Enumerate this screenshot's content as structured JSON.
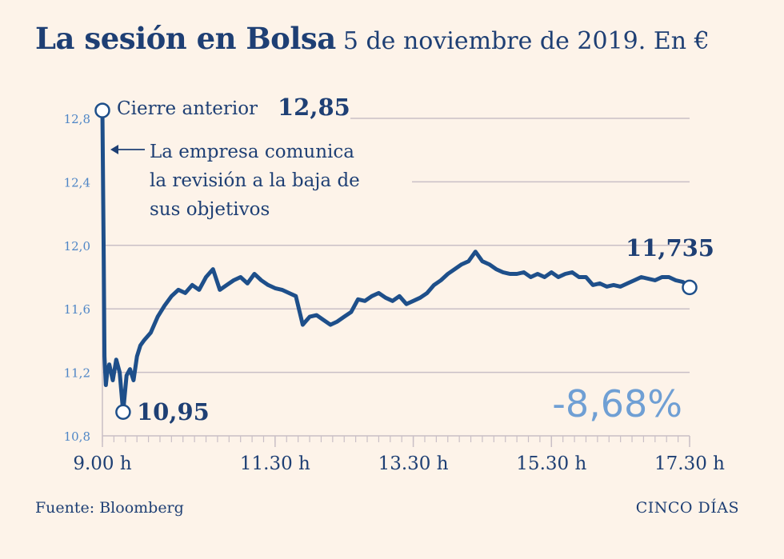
{
  "header": {
    "title": "La sesión en Bolsa",
    "subtitle": "5 de noviembre de 2019. En €"
  },
  "footer": {
    "source": "Fuente: Bloomberg",
    "brand": "CINCO DÍAS"
  },
  "colors": {
    "background": "#fdf3e9",
    "line": "#1e4f8a",
    "text": "#1e3f74",
    "axis_text": "#4f86c6",
    "grid": "#c9bfc6",
    "change": "#6f9fd4"
  },
  "chart_data": {
    "type": "line",
    "title": "La sesión en Bolsa",
    "subtitle": "5 de noviembre de 2019. En €",
    "xlabel": "",
    "ylabel": "",
    "ylim": [
      10.8,
      12.85
    ],
    "yticks": [
      10.8,
      11.2,
      11.6,
      12.0,
      12.4,
      12.8
    ],
    "ytick_labels": [
      "10,8",
      "11,2",
      "11,6",
      "12,0",
      "12,4",
      "12,8"
    ],
    "xlim_hours": [
      9.0,
      17.5
    ],
    "xticks_hours": [
      9.0,
      11.5,
      13.5,
      15.5,
      17.5
    ],
    "xtick_labels": [
      "9.00 h",
      "11.30 h",
      "13.30 h",
      "15.30 h",
      "17.30 h"
    ],
    "grid": true,
    "series": [
      {
        "x_hours": [
          9.0,
          9.02,
          9.03,
          9.05,
          9.07,
          9.1,
          9.15,
          9.2,
          9.25,
          9.3,
          9.35,
          9.4,
          9.45,
          9.5,
          9.55,
          9.6,
          9.7,
          9.8,
          9.9,
          10.0,
          10.1,
          10.2,
          10.3,
          10.4,
          10.5,
          10.6,
          10.7,
          10.8,
          10.9,
          11.0,
          11.1,
          11.2,
          11.3,
          11.4,
          11.5,
          11.6,
          11.7,
          11.8,
          11.9,
          12.0,
          12.1,
          12.2,
          12.3,
          12.4,
          12.5,
          12.6,
          12.7,
          12.8,
          12.9,
          13.0,
          13.1,
          13.2,
          13.3,
          13.4,
          13.5,
          13.6,
          13.7,
          13.8,
          13.9,
          14.0,
          14.1,
          14.2,
          14.3,
          14.4,
          14.5,
          14.6,
          14.7,
          14.8,
          14.9,
          15.0,
          15.1,
          15.2,
          15.3,
          15.4,
          15.5,
          15.6,
          15.7,
          15.8,
          15.9,
          16.0,
          16.1,
          16.2,
          16.3,
          16.4,
          16.5,
          16.6,
          16.7,
          16.8,
          16.9,
          17.0,
          17.1,
          17.2,
          17.3,
          17.4,
          17.5
        ],
        "values": [
          12.85,
          11.9,
          11.3,
          11.12,
          11.2,
          11.25,
          11.15,
          11.28,
          11.2,
          10.95,
          11.18,
          11.22,
          11.15,
          11.3,
          11.37,
          11.4,
          11.45,
          11.55,
          11.62,
          11.68,
          11.72,
          11.7,
          11.75,
          11.72,
          11.8,
          11.85,
          11.72,
          11.75,
          11.78,
          11.8,
          11.76,
          11.82,
          11.78,
          11.75,
          11.73,
          11.72,
          11.7,
          11.68,
          11.5,
          11.55,
          11.56,
          11.53,
          11.5,
          11.52,
          11.55,
          11.58,
          11.66,
          11.65,
          11.68,
          11.7,
          11.67,
          11.65,
          11.68,
          11.63,
          11.65,
          11.67,
          11.7,
          11.75,
          11.78,
          11.82,
          11.85,
          11.88,
          11.9,
          11.96,
          11.9,
          11.88,
          11.85,
          11.83,
          11.82,
          11.82,
          11.83,
          11.8,
          11.82,
          11.8,
          11.83,
          11.8,
          11.82,
          11.83,
          11.8,
          11.8,
          11.75,
          11.76,
          11.74,
          11.75,
          11.74,
          11.76,
          11.78,
          11.8,
          11.79,
          11.78,
          11.8,
          11.8,
          11.78,
          11.77,
          11.735
        ]
      }
    ],
    "annotations": {
      "prev_close_label": "Cierre anterior",
      "prev_close_value": "12,85",
      "note": [
        "La empresa comunica",
        "la revisión a la baja de",
        "sus objetivos"
      ],
      "low_value": "10,95",
      "close_value": "11,735",
      "change": "-8,68%"
    }
  }
}
